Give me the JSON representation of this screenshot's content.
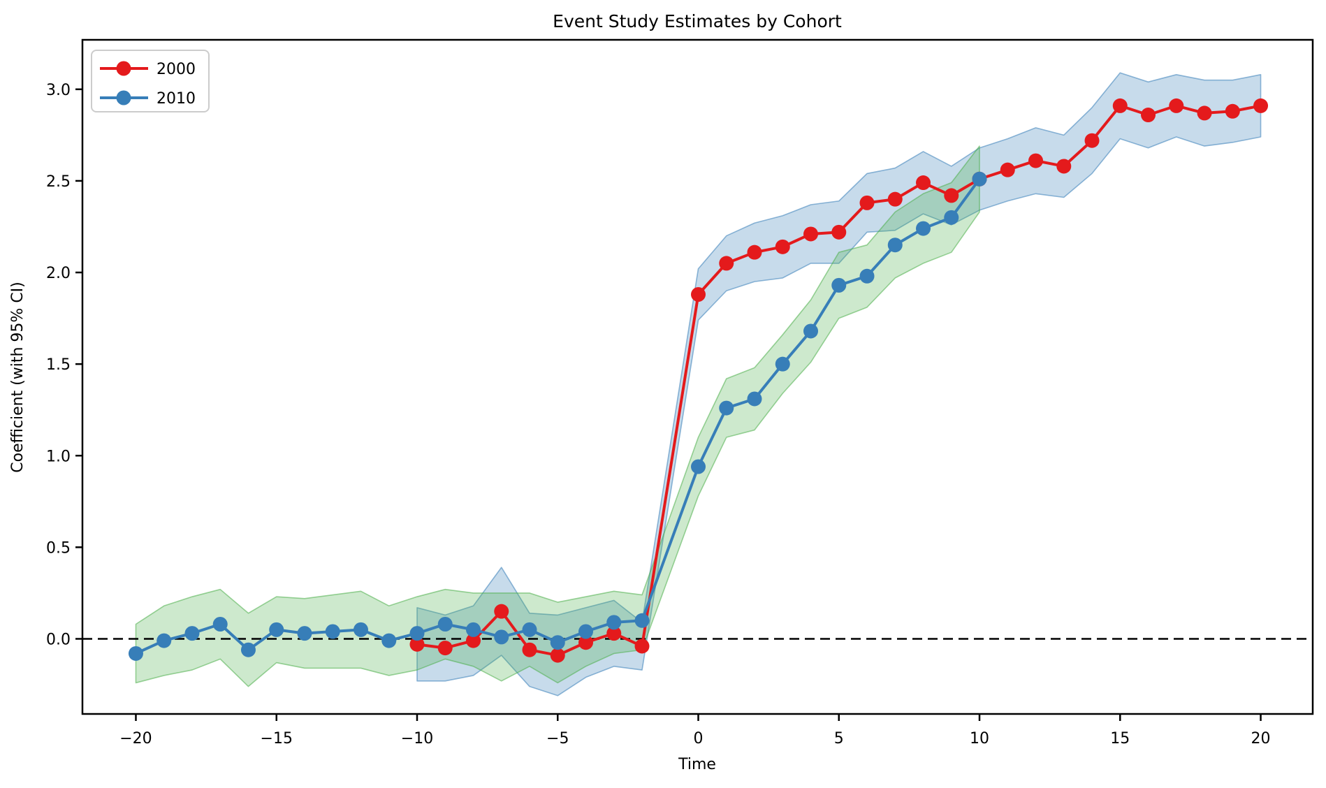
{
  "figure": {
    "background": "#ffffff",
    "frame_color": "#000000"
  },
  "chart_data": {
    "type": "line",
    "title": "Event Study Estimates by Cohort",
    "xlabel": "Time",
    "ylabel": "Coefficient (with 95% CI)",
    "xlim": [
      -21.9,
      21.85
    ],
    "ylim": [
      -0.41,
      3.27
    ],
    "grid": false,
    "x_ticks": [
      -20,
      -15,
      -10,
      -5,
      0,
      5,
      10,
      15,
      20
    ],
    "x_tick_labels": [
      "−20",
      "−15",
      "−10",
      "−5",
      "0",
      "5",
      "10",
      "15",
      "20"
    ],
    "y_ticks": [
      0.0,
      0.5,
      1.0,
      1.5,
      2.0,
      2.5,
      3.0
    ],
    "y_tick_labels": [
      "0.0",
      "0.5",
      "1.0",
      "1.5",
      "2.0",
      "2.5",
      "3.0"
    ],
    "zero_line": {
      "y": 0,
      "style": "dashed",
      "color": "#000000"
    },
    "legend": {
      "position": "upper-left",
      "entries": [
        {
          "label": "2000",
          "color": "#e41a1c"
        },
        {
          "label": "2010",
          "color": "#377eb8"
        }
      ]
    },
    "series": [
      {
        "name": "2000",
        "line_color": "#e41a1c",
        "band_color": "#377eb8",
        "band_fill_opacity": 0.28,
        "band_edge_opacity": 0.55,
        "x": [
          -10,
          -9,
          -8,
          -7,
          -6,
          -5,
          -4,
          -3,
          -2,
          0,
          1,
          2,
          3,
          4,
          5,
          6,
          7,
          8,
          9,
          10,
          11,
          12,
          13,
          14,
          15,
          16,
          17,
          18,
          19,
          20
        ],
        "y": [
          -0.03,
          -0.05,
          -0.01,
          0.15,
          -0.06,
          -0.09,
          -0.02,
          0.03,
          -0.04,
          1.88,
          2.05,
          2.11,
          2.14,
          2.21,
          2.22,
          2.38,
          2.4,
          2.49,
          2.42,
          2.51,
          2.56,
          2.61,
          2.58,
          2.72,
          2.91,
          2.86,
          2.91,
          2.87,
          2.88,
          2.91
        ],
        "ci_lo": [
          -0.23,
          -0.23,
          -0.2,
          -0.09,
          -0.26,
          -0.31,
          -0.21,
          -0.15,
          -0.17,
          1.74,
          1.9,
          1.95,
          1.97,
          2.05,
          2.05,
          2.22,
          2.23,
          2.32,
          2.26,
          2.34,
          2.39,
          2.43,
          2.41,
          2.54,
          2.73,
          2.68,
          2.74,
          2.69,
          2.71,
          2.74
        ],
        "ci_hi": [
          0.17,
          0.13,
          0.18,
          0.39,
          0.14,
          0.13,
          0.17,
          0.21,
          0.09,
          2.02,
          2.2,
          2.27,
          2.31,
          2.37,
          2.39,
          2.54,
          2.57,
          2.66,
          2.58,
          2.68,
          2.73,
          2.79,
          2.75,
          2.9,
          3.09,
          3.04,
          3.08,
          3.05,
          3.05,
          3.08
        ]
      },
      {
        "name": "2010",
        "line_color": "#377eb8",
        "band_color": "#4daf4a",
        "band_fill_opacity": 0.28,
        "band_edge_opacity": 0.55,
        "x": [
          -20,
          -19,
          -18,
          -17,
          -16,
          -15,
          -14,
          -13,
          -12,
          -11,
          -10,
          -9,
          -8,
          -7,
          -6,
          -5,
          -4,
          -3,
          -2,
          0,
          1,
          2,
          3,
          4,
          5,
          6,
          7,
          8,
          9,
          10
        ],
        "y": [
          -0.08,
          -0.01,
          0.03,
          0.08,
          -0.06,
          0.05,
          0.03,
          0.04,
          0.05,
          -0.01,
          0.03,
          0.08,
          0.05,
          0.01,
          0.05,
          -0.02,
          0.04,
          0.09,
          0.1,
          0.94,
          1.26,
          1.31,
          1.5,
          1.68,
          1.93,
          1.98,
          2.15,
          2.24,
          2.3,
          2.51
        ],
        "ci_lo": [
          -0.24,
          -0.2,
          -0.17,
          -0.11,
          -0.26,
          -0.13,
          -0.16,
          -0.16,
          -0.16,
          -0.2,
          -0.17,
          -0.11,
          -0.15,
          -0.23,
          -0.15,
          -0.24,
          -0.15,
          -0.08,
          -0.06,
          0.78,
          1.1,
          1.14,
          1.34,
          1.51,
          1.75,
          1.81,
          1.97,
          2.05,
          2.11,
          2.33
        ],
        "ci_hi": [
          0.08,
          0.18,
          0.23,
          0.27,
          0.14,
          0.23,
          0.22,
          0.24,
          0.26,
          0.18,
          0.23,
          0.27,
          0.25,
          0.25,
          0.25,
          0.2,
          0.23,
          0.26,
          0.24,
          1.1,
          1.42,
          1.48,
          1.66,
          1.85,
          2.11,
          2.15,
          2.33,
          2.43,
          2.49,
          2.69
        ]
      }
    ]
  }
}
